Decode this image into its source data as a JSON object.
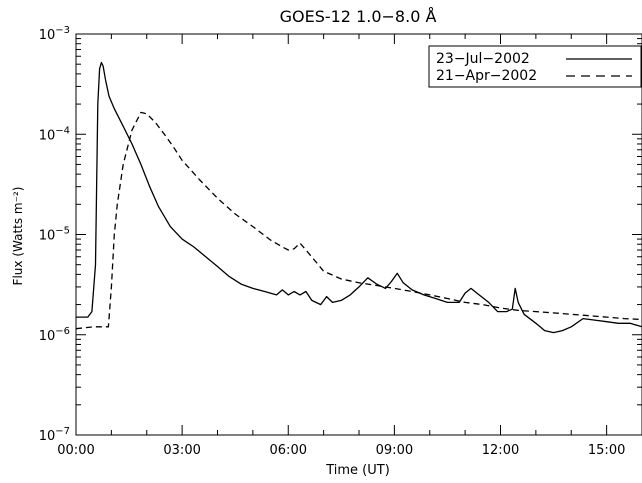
{
  "chart_data": {
    "type": "line",
    "title": "GOES-12 1.0−8.0 Å",
    "xlabel": "Time (UT)",
    "ylabel": "Flux (Watts m⁻²)",
    "y_scale": "log",
    "xlim": [
      "00:00",
      "16:00"
    ],
    "ylim": [
      1e-07,
      0.001
    ],
    "x_ticks": [
      "00:00",
      "03:00",
      "06:00",
      "09:00",
      "12:00",
      "15:00"
    ],
    "y_ticks": [
      {
        "value": 1e-07,
        "base": "10",
        "exp": "−7"
      },
      {
        "value": 1e-06,
        "base": "10",
        "exp": "−6"
      },
      {
        "value": 1e-05,
        "base": "10",
        "exp": "−5"
      },
      {
        "value": 0.0001,
        "base": "10",
        "exp": "−4"
      },
      {
        "value": 0.001,
        "base": "10",
        "exp": "−3"
      }
    ],
    "grid": false,
    "legend_position": "top-right",
    "series": [
      {
        "name": "23−Jul−2002",
        "style": "solid",
        "points": [
          [
            "00:00",
            1.5e-06
          ],
          [
            "00:20",
            1.5e-06
          ],
          [
            "00:27",
            1.7e-06
          ],
          [
            "00:33",
            5e-06
          ],
          [
            "00:37",
            0.0002
          ],
          [
            "00:40",
            0.00045
          ],
          [
            "00:43",
            0.00052
          ],
          [
            "00:46",
            0.00048
          ],
          [
            "00:50",
            0.00035
          ],
          [
            "00:56",
            0.00024
          ],
          [
            "01:05",
            0.00018
          ],
          [
            "01:20",
            0.00012
          ],
          [
            "01:35",
            8e-05
          ],
          [
            "01:50",
            5e-05
          ],
          [
            "02:05",
            3e-05
          ],
          [
            "02:20",
            1.9e-05
          ],
          [
            "02:40",
            1.2e-05
          ],
          [
            "03:00",
            9e-06
          ],
          [
            "03:20",
            7.5e-06
          ],
          [
            "03:40",
            6e-06
          ],
          [
            "04:00",
            4.8e-06
          ],
          [
            "04:20",
            3.8e-06
          ],
          [
            "04:40",
            3.2e-06
          ],
          [
            "05:00",
            2.9e-06
          ],
          [
            "05:20",
            2.7e-06
          ],
          [
            "05:40",
            2.5e-06
          ],
          [
            "05:50",
            2.8e-06
          ],
          [
            "06:00",
            2.5e-06
          ],
          [
            "06:10",
            2.7e-06
          ],
          [
            "06:20",
            2.5e-06
          ],
          [
            "06:30",
            2.7e-06
          ],
          [
            "06:40",
            2.2e-06
          ],
          [
            "06:55",
            2e-06
          ],
          [
            "07:05",
            2.4e-06
          ],
          [
            "07:15",
            2.1e-06
          ],
          [
            "07:30",
            2.2e-06
          ],
          [
            "07:45",
            2.5e-06
          ],
          [
            "08:00",
            3e-06
          ],
          [
            "08:15",
            3.7e-06
          ],
          [
            "08:30",
            3.2e-06
          ],
          [
            "08:45",
            2.9e-06
          ],
          [
            "08:55",
            3.4e-06
          ],
          [
            "09:05",
            4.1e-06
          ],
          [
            "09:15",
            3.3e-06
          ],
          [
            "09:30",
            2.8e-06
          ],
          [
            "09:50",
            2.5e-06
          ],
          [
            "10:10",
            2.3e-06
          ],
          [
            "10:30",
            2.1e-06
          ],
          [
            "10:50",
            2.1e-06
          ],
          [
            "11:00",
            2.6e-06
          ],
          [
            "11:10",
            2.9e-06
          ],
          [
            "11:20",
            2.6e-06
          ],
          [
            "11:40",
            2.1e-06
          ],
          [
            "11:55",
            1.7e-06
          ],
          [
            "12:10",
            1.7e-06
          ],
          [
            "12:20",
            1.8e-06
          ],
          [
            "12:25",
            2.9e-06
          ],
          [
            "12:30",
            2.1e-06
          ],
          [
            "12:40",
            1.6e-06
          ],
          [
            "13:00",
            1.3e-06
          ],
          [
            "13:15",
            1.1e-06
          ],
          [
            "13:30",
            1.05e-06
          ],
          [
            "13:45",
            1.1e-06
          ],
          [
            "14:00",
            1.2e-06
          ],
          [
            "14:20",
            1.45e-06
          ],
          [
            "14:40",
            1.4e-06
          ],
          [
            "15:00",
            1.35e-06
          ],
          [
            "15:20",
            1.3e-06
          ],
          [
            "15:40",
            1.3e-06
          ],
          [
            "16:00",
            1.2e-06
          ]
        ]
      },
      {
        "name": "21−Apr−2002",
        "style": "dashed",
        "points": [
          [
            "00:00",
            1.15e-06
          ],
          [
            "00:30",
            1.2e-06
          ],
          [
            "00:55",
            1.2e-06
          ],
          [
            "01:00",
            3e-06
          ],
          [
            "01:05",
            1e-05
          ],
          [
            "01:10",
            2e-05
          ],
          [
            "01:20",
            5e-05
          ],
          [
            "01:35",
            0.00011
          ],
          [
            "01:50",
            0.000165
          ],
          [
            "02:00",
            0.00016
          ],
          [
            "02:15",
            0.00013
          ],
          [
            "02:30",
            0.0001
          ],
          [
            "02:45",
            7.5e-05
          ],
          [
            "03:00",
            5.5e-05
          ],
          [
            "03:30",
            3.5e-05
          ],
          [
            "04:00",
            2.3e-05
          ],
          [
            "04:30",
            1.6e-05
          ],
          [
            "05:00",
            1.2e-05
          ],
          [
            "05:30",
            8.8e-06
          ],
          [
            "05:50",
            7.5e-06
          ],
          [
            "06:00",
            7e-06
          ],
          [
            "06:10",
            7.2e-06
          ],
          [
            "06:20",
            8.2e-06
          ],
          [
            "06:30",
            7e-06
          ],
          [
            "06:45",
            5.5e-06
          ],
          [
            "07:00",
            4.3e-06
          ],
          [
            "07:30",
            3.6e-06
          ],
          [
            "08:00",
            3.3e-06
          ],
          [
            "08:30",
            3.1e-06
          ],
          [
            "09:00",
            2.9e-06
          ],
          [
            "09:30",
            2.7e-06
          ],
          [
            "10:00",
            2.5e-06
          ],
          [
            "10:30",
            2.3e-06
          ],
          [
            "11:00",
            2.1e-06
          ],
          [
            "11:30",
            2e-06
          ],
          [
            "12:00",
            1.85e-06
          ],
          [
            "12:30",
            1.75e-06
          ],
          [
            "13:00",
            1.7e-06
          ],
          [
            "13:30",
            1.65e-06
          ],
          [
            "14:00",
            1.6e-06
          ],
          [
            "14:30",
            1.55e-06
          ],
          [
            "15:00",
            1.5e-06
          ],
          [
            "15:30",
            1.45e-06
          ],
          [
            "16:00",
            1.42e-06
          ]
        ]
      }
    ]
  }
}
